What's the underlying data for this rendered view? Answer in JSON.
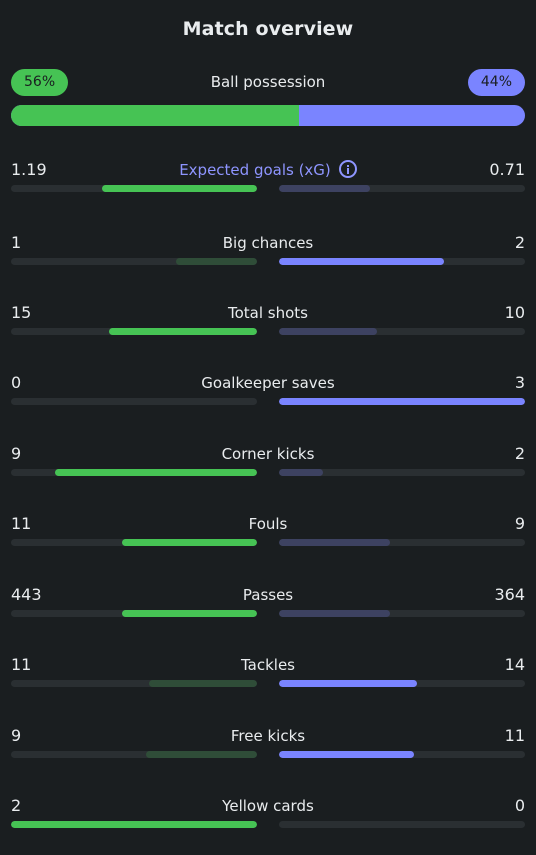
{
  "header": {
    "title": "Match overview"
  },
  "possession": {
    "label": "Ball possession",
    "home_text": "56%",
    "away_text": "44%",
    "home_pct": 56,
    "away_pct": 44
  },
  "colors": {
    "home_win": "#46c354",
    "home_lose": "#2f4d38",
    "away_win": "#7a84ff",
    "away_lose": "#3d4261",
    "link": "#8e95ff"
  },
  "stats": [
    {
      "label": "Expected goals (xG)",
      "home": "1.19",
      "away": "0.71",
      "home_num": 1.19,
      "away_num": 0.71,
      "home_ratio": 0.63,
      "away_ratio": 0.37,
      "has_info": true
    },
    {
      "label": "Big chances",
      "home": "1",
      "away": "2",
      "home_num": 1,
      "away_num": 2,
      "home_ratio": 0.33,
      "away_ratio": 0.67
    },
    {
      "label": "Total shots",
      "home": "15",
      "away": "10",
      "home_num": 15,
      "away_num": 10,
      "home_ratio": 0.6,
      "away_ratio": 0.4
    },
    {
      "label": "Goalkeeper saves",
      "home": "0",
      "away": "3",
      "home_num": 0,
      "away_num": 3,
      "home_ratio": 0.0,
      "away_ratio": 1.0
    },
    {
      "label": "Corner kicks",
      "home": "9",
      "away": "2",
      "home_num": 9,
      "away_num": 2,
      "home_ratio": 0.82,
      "away_ratio": 0.18
    },
    {
      "label": "Fouls",
      "home": "11",
      "away": "9",
      "home_num": 11,
      "away_num": 9,
      "home_ratio": 0.55,
      "away_ratio": 0.45
    },
    {
      "label": "Passes",
      "home": "443",
      "away": "364",
      "home_num": 443,
      "away_num": 364,
      "home_ratio": 0.55,
      "away_ratio": 0.45
    },
    {
      "label": "Tackles",
      "home": "11",
      "away": "14",
      "home_num": 11,
      "away_num": 14,
      "home_ratio": 0.44,
      "away_ratio": 0.56
    },
    {
      "label": "Free kicks",
      "home": "9",
      "away": "11",
      "home_num": 9,
      "away_num": 11,
      "home_ratio": 0.45,
      "away_ratio": 0.55
    },
    {
      "label": "Yellow cards",
      "home": "2",
      "away": "0",
      "home_num": 2,
      "away_num": 0,
      "home_ratio": 1.0,
      "away_ratio": 0.0
    }
  ]
}
